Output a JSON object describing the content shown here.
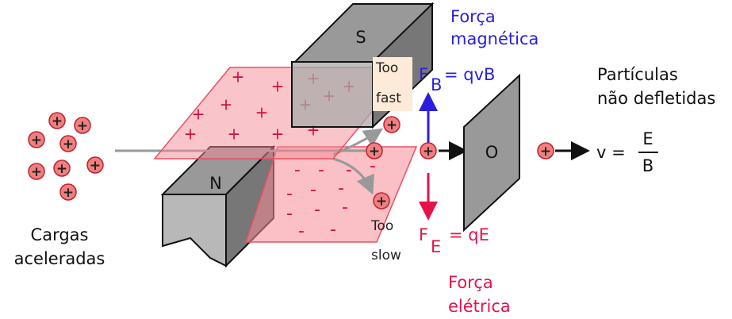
{
  "magnets": {
    "south": "S",
    "north": "N"
  },
  "charge_signs": {
    "positive": "+",
    "negative": "-"
  },
  "magnetic_force": {
    "label": [
      "Força",
      "magnética"
    ],
    "symbol": "F",
    "subscript": "B",
    "equation": "= qvB"
  },
  "electric_force": {
    "label": [
      "Força",
      "elétrica"
    ],
    "symbol": "F",
    "subscript": "E",
    "equation": "= qE"
  },
  "too_fast": [
    "Too",
    "fast"
  ],
  "too_slow": [
    "Too",
    "slow"
  ],
  "source_label": [
    "Cargas",
    "aceleradas"
  ],
  "output_label": [
    "Partículas",
    "não defletidas"
  ],
  "slit_label": "O",
  "velocity": {
    "lhs": "v =",
    "numerator": "E",
    "denominator": "B"
  }
}
